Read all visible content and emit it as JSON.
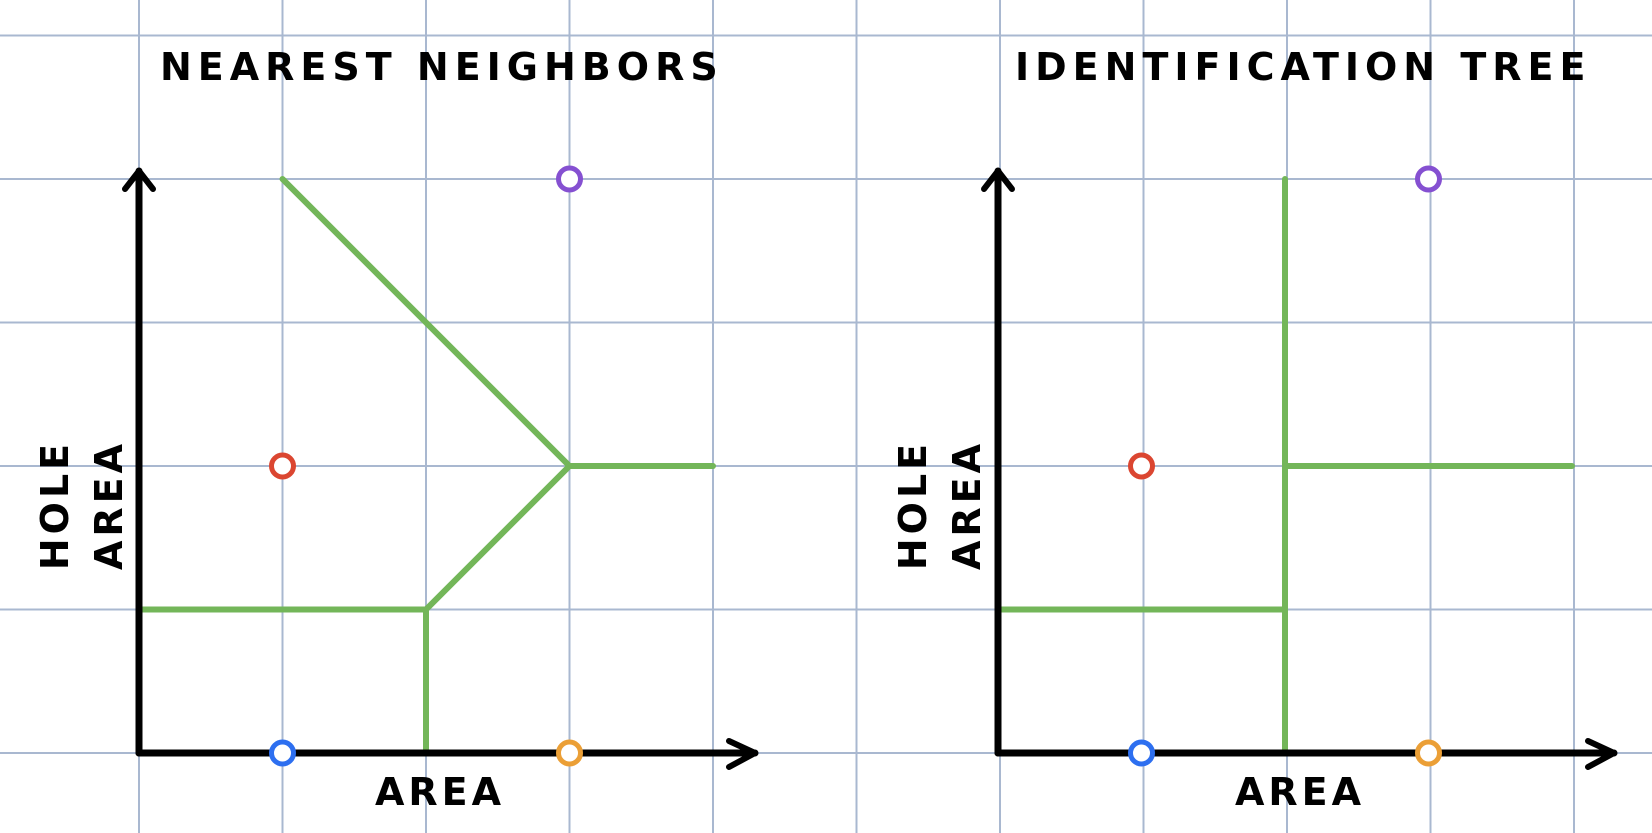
{
  "colors": {
    "grid": "#a9b8d0",
    "axis": "#000000",
    "boundary": "#73b659",
    "point_red": "#db4631",
    "point_purple": "#8550d1",
    "point_blue": "#2d6ff0",
    "point_orange": "#eb9f36"
  },
  "panels": [
    {
      "title": "NEAREST NEIGHBORS",
      "xlabel": "AREA",
      "ylabel_line1": "HOLE",
      "ylabel_line2": "AREA",
      "boundary_type": "voronoi",
      "points": [
        {
          "x": 1,
          "y": 2,
          "color": "point_red"
        },
        {
          "x": 3,
          "y": 4,
          "color": "point_purple"
        },
        {
          "x": 1,
          "y": 0,
          "color": "point_blue"
        },
        {
          "x": 3,
          "y": 0,
          "color": "point_orange"
        }
      ],
      "boundaries": [
        [
          [
            1,
            4
          ],
          [
            3,
            2
          ]
        ],
        [
          [
            3,
            2
          ],
          [
            4,
            2
          ]
        ],
        [
          [
            3,
            2
          ],
          [
            2,
            1
          ]
        ],
        [
          [
            0,
            1
          ],
          [
            2,
            1
          ]
        ],
        [
          [
            2,
            1
          ],
          [
            2,
            0
          ]
        ]
      ]
    },
    {
      "title": "IDENTIFICATION TREE",
      "xlabel": "AREA",
      "ylabel_line1": "HOLE",
      "ylabel_line2": "AREA",
      "boundary_type": "axis-aligned",
      "points": [
        {
          "x": 1,
          "y": 2,
          "color": "point_red"
        },
        {
          "x": 3,
          "y": 4,
          "color": "point_purple"
        },
        {
          "x": 1,
          "y": 0,
          "color": "point_blue"
        },
        {
          "x": 3,
          "y": 0,
          "color": "point_orange"
        }
      ],
      "boundaries": [
        [
          [
            2,
            4
          ],
          [
            2,
            0
          ]
        ],
        [
          [
            2,
            2
          ],
          [
            4,
            2
          ]
        ],
        [
          [
            0,
            1
          ],
          [
            2,
            1
          ]
        ]
      ]
    }
  ]
}
